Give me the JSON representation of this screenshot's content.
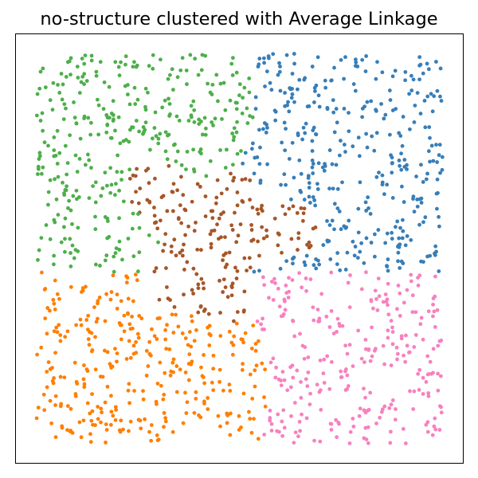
{
  "chart_data": {
    "type": "scatter",
    "title": "no-structure clustered with Average Linkage",
    "xlabel": "",
    "ylabel": "",
    "xlim": [
      -0.05,
      1.05
    ],
    "ylim": [
      -0.05,
      1.05
    ],
    "axes_ticks": false,
    "grid": false,
    "legend": "none",
    "point_count": 1500,
    "random_seed": 42,
    "clusters": [
      {
        "label": "cluster-green",
        "color": "#4daf4a",
        "region": "top-left"
      },
      {
        "label": "cluster-blue",
        "color": "#377eb8",
        "region": "top-right"
      },
      {
        "label": "cluster-brown",
        "color": "#a65628",
        "region": "center"
      },
      {
        "label": "cluster-orange",
        "color": "#ff7f00",
        "region": "bottom-left"
      },
      {
        "label": "cluster-pink",
        "color": "#f781bf",
        "region": "bottom-right"
      }
    ]
  }
}
